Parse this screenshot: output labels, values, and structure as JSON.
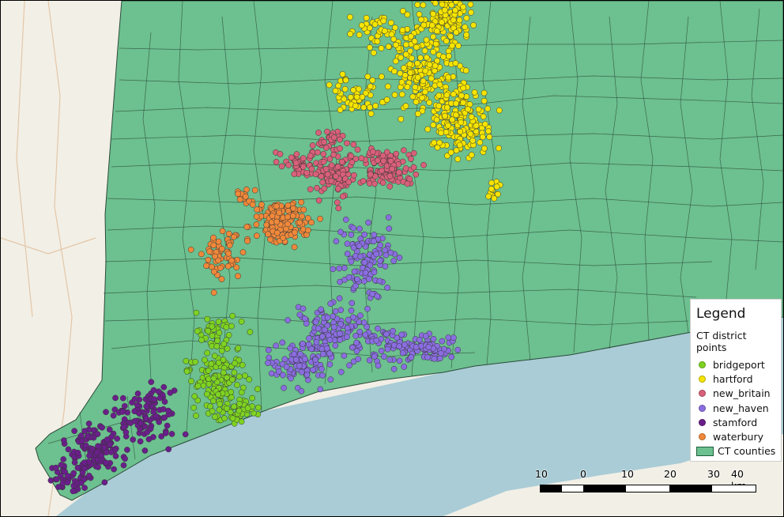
{
  "legend": {
    "title": "Legend",
    "group_label": "CT district points",
    "items": [
      {
        "label": "bridgeport",
        "color": "#7ed321"
      },
      {
        "label": "hartford",
        "color": "#f5e400"
      },
      {
        "label": "new_britain",
        "color": "#d9607a"
      },
      {
        "label": "new_haven",
        "color": "#8a6ee0"
      },
      {
        "label": "stamford",
        "color": "#6a1f8a"
      },
      {
        "label": "waterbury",
        "color": "#f0883a"
      }
    ],
    "polygon_item": {
      "label": "CT counties",
      "color": "#6dc08f"
    }
  },
  "scalebar": {
    "labels": [
      "10",
      "0",
      "10",
      "20",
      "30",
      "40 km"
    ]
  },
  "colors": {
    "land_fill": "#6dc08f",
    "water": "#a9ccd6",
    "basemap": "#f2efe6",
    "borders": "#2a4a3a"
  }
}
